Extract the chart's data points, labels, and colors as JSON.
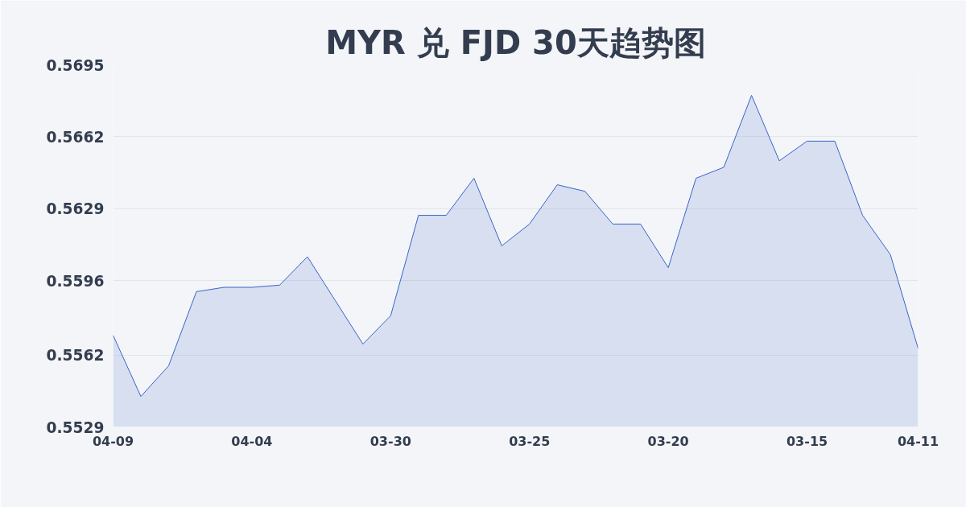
{
  "chart_data": {
    "type": "area",
    "title": "MYR 兑 FJD 30天趋势图",
    "categories": [
      "04-09",
      null,
      null,
      null,
      null,
      "04-04",
      null,
      null,
      null,
      null,
      "03-30",
      null,
      null,
      null,
      null,
      "03-25",
      null,
      null,
      null,
      null,
      "03-20",
      null,
      null,
      null,
      null,
      "03-15",
      null,
      null,
      null,
      "04-11"
    ],
    "values": [
      0.5571,
      0.5543,
      0.5557,
      0.5591,
      0.5593,
      0.5593,
      0.5594,
      0.5607,
      0.5587,
      0.5567,
      0.558,
      0.5626,
      0.5626,
      0.5643,
      0.5612,
      0.5622,
      0.564,
      0.5637,
      0.5622,
      0.5622,
      0.5602,
      0.5643,
      0.5648,
      0.5681,
      0.5651,
      0.566,
      0.566,
      0.5626,
      0.5608,
      0.5565
    ],
    "color": "#3a64c8",
    "ylim": [
      0.5529,
      0.5695
    ],
    "yticks": [
      0.5529,
      0.5562,
      0.5596,
      0.5629,
      0.5662,
      0.5695
    ],
    "grid": "y"
  }
}
